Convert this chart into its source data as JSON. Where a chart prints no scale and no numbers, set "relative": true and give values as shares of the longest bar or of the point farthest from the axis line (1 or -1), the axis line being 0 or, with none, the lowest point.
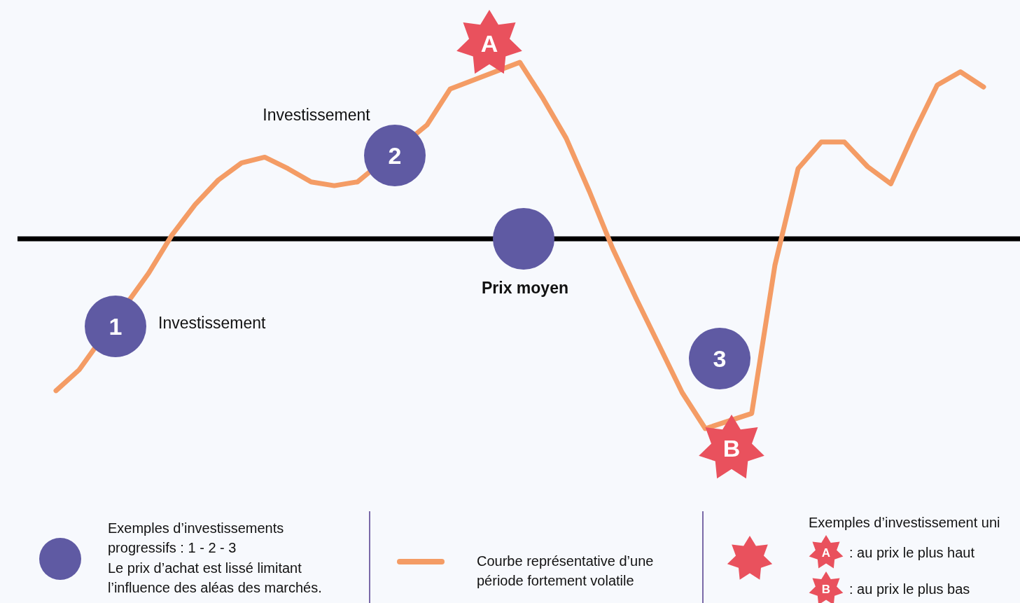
{
  "chart_data": {
    "type": "line",
    "relative": true,
    "legend": "bottom",
    "categories": [
      null,
      null,
      null,
      null,
      null,
      null,
      null,
      null,
      null,
      null,
      null,
      null,
      null,
      null,
      null,
      null,
      null,
      null,
      null,
      null,
      null,
      null,
      null,
      null,
      null,
      null,
      null,
      null,
      null,
      null,
      null,
      null,
      null,
      null,
      null,
      null,
      null,
      null,
      null,
      null,
      null
    ],
    "series": [
      {
        "name": "Courbe représentative d’une période fortement volatile",
        "color": "#f49c65",
        "values": [
          -0.8,
          -0.69,
          null,
          null,
          -0.18,
          0.02,
          0.18,
          0.31,
          0.4,
          0.43,
          0.37,
          0.3,
          0.28,
          0.3,
          null,
          null,
          0.6,
          0.79,
          null,
          null,
          0.93,
          0.74,
          0.53,
          0.25,
          -0.05,
          -0.31,
          -0.56,
          -0.81,
          -1,
          null,
          -0.92,
          -0.14,
          0.37,
          0.51,
          0.51,
          0.38,
          0.29,
          0.56,
          0.81,
          0.88,
          0.8
        ]
      }
    ],
    "annotations": [
      "Investissement",
      "Investissement",
      "Prix moyen",
      "1",
      "2",
      "3",
      "A",
      "B",
      "Exemples d’investissements progressifs : 1 - 2 - 3",
      "Le prix d’achat est lissé limitant l’influence des aléas des marchés.",
      "Exemples d’investissement uni",
      "A",
      ": au prix le plus haut",
      "B",
      ": au prix le plus bas"
    ]
  }
}
